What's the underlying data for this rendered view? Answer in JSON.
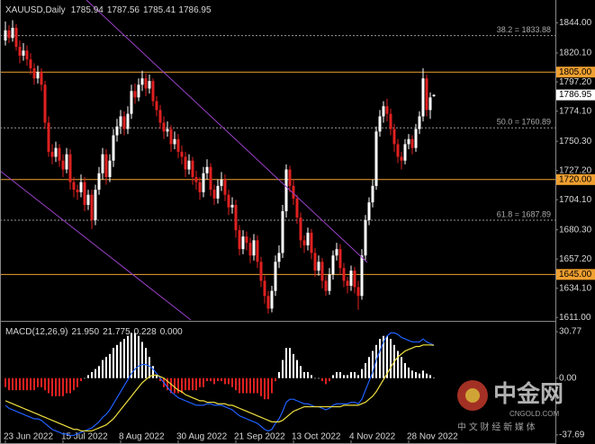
{
  "chart_data": [
    {
      "type": "candlestick",
      "title": "XAUUSD,Daily",
      "ylim": [
        1609,
        1862
      ],
      "yticks": [
        {
          "value": 1844,
          "label": "1844.00"
        },
        {
          "value": 1820.1,
          "label": "1820.10"
        },
        {
          "value": 1797.2,
          "label": "1797.20"
        },
        {
          "value": 1774.1,
          "label": "1774.10"
        },
        {
          "value": 1750.3,
          "label": "1750.30"
        },
        {
          "value": 1727.2,
          "label": "1727.20"
        },
        {
          "value": 1704.1,
          "label": "1704.10"
        },
        {
          "value": 1680.3,
          "label": "1680.30"
        },
        {
          "value": 1657.2,
          "label": "1657.20"
        },
        {
          "value": 1634.1,
          "label": "1634.10"
        },
        {
          "value": 1611,
          "label": "1611.00"
        }
      ],
      "xticks": [
        {
          "value": 0,
          "label": "23 Jun 2022"
        },
        {
          "value": 16,
          "label": "15 Jul 2022"
        },
        {
          "value": 32,
          "label": "8 Aug 2022"
        },
        {
          "value": 48,
          "label": "30 Aug 2022"
        },
        {
          "value": 64,
          "label": "21 Sep 2022"
        },
        {
          "value": 80,
          "label": "13 Oct 2022"
        },
        {
          "value": 96,
          "label": "4 Nov 2022"
        },
        {
          "value": 112,
          "label": "28 Nov 2022"
        }
      ],
      "up_color": "#ffffff",
      "down_color": "#e02020",
      "levels": [
        {
          "value": 1805,
          "label": "1805.00"
        },
        {
          "value": 1720,
          "label": "1720.00"
        },
        {
          "value": 1645,
          "label": "1645.00"
        }
      ],
      "level_color": "#f0a030",
      "fib_levels": [
        {
          "value": 1833.88,
          "label": "38.2 = 1833.88"
        },
        {
          "value": 1760.89,
          "label": "50.0 = 1760.89"
        },
        {
          "value": 1687.89,
          "label": "61.8 = 1687.89"
        }
      ],
      "ohlc": [
        [
          1830,
          1845,
          1826,
          1838
        ],
        [
          1838,
          1842,
          1828,
          1832
        ],
        [
          1832,
          1846,
          1829,
          1840
        ],
        [
          1840,
          1843,
          1822,
          1825
        ],
        [
          1825,
          1830,
          1812,
          1818
        ],
        [
          1818,
          1828,
          1814,
          1822
        ],
        [
          1822,
          1826,
          1810,
          1815
        ],
        [
          1815,
          1820,
          1803,
          1808
        ],
        [
          1808,
          1812,
          1795,
          1800
        ],
        [
          1800,
          1810,
          1796,
          1805
        ],
        [
          1805,
          1808,
          1790,
          1795
        ],
        [
          1795,
          1798,
          1760,
          1765
        ],
        [
          1765,
          1770,
          1738,
          1742
        ],
        [
          1742,
          1748,
          1732,
          1738
        ],
        [
          1738,
          1750,
          1734,
          1745
        ],
        [
          1745,
          1748,
          1730,
          1735
        ],
        [
          1735,
          1740,
          1722,
          1728
        ],
        [
          1728,
          1745,
          1725,
          1740
        ],
        [
          1740,
          1744,
          1712,
          1718
        ],
        [
          1718,
          1722,
          1706,
          1712
        ],
        [
          1712,
          1716,
          1704,
          1710
        ],
        [
          1710,
          1724,
          1706,
          1718
        ],
        [
          1718,
          1722,
          1695,
          1700
        ],
        [
          1700,
          1712,
          1696,
          1708
        ],
        [
          1708,
          1712,
          1681,
          1688
        ],
        [
          1688,
          1716,
          1684,
          1712
        ],
        [
          1712,
          1730,
          1708,
          1725
        ],
        [
          1725,
          1745,
          1720,
          1740
        ],
        [
          1740,
          1744,
          1716,
          1722
        ],
        [
          1722,
          1740,
          1718,
          1735
        ],
        [
          1735,
          1760,
          1730,
          1755
        ],
        [
          1755,
          1768,
          1750,
          1762
        ],
        [
          1762,
          1775,
          1756,
          1770
        ],
        [
          1770,
          1774,
          1755,
          1760
        ],
        [
          1760,
          1778,
          1756,
          1772
        ],
        [
          1772,
          1795,
          1768,
          1790
        ],
        [
          1790,
          1796,
          1780,
          1785
        ],
        [
          1785,
          1800,
          1782,
          1795
        ],
        [
          1795,
          1806,
          1790,
          1800
        ],
        [
          1800,
          1804,
          1786,
          1792
        ],
        [
          1792,
          1803,
          1788,
          1798
        ],
        [
          1798,
          1800,
          1778,
          1782
        ],
        [
          1782,
          1786,
          1770,
          1775
        ],
        [
          1775,
          1779,
          1760,
          1765
        ],
        [
          1765,
          1770,
          1752,
          1758
        ],
        [
          1758,
          1766,
          1754,
          1760
        ],
        [
          1760,
          1763,
          1742,
          1748
        ],
        [
          1748,
          1758,
          1744,
          1752
        ],
        [
          1752,
          1756,
          1737,
          1742
        ],
        [
          1742,
          1747,
          1732,
          1738
        ],
        [
          1738,
          1742,
          1722,
          1728
        ],
        [
          1728,
          1740,
          1724,
          1735
        ],
        [
          1735,
          1738,
          1716,
          1722
        ],
        [
          1722,
          1727,
          1712,
          1718
        ],
        [
          1718,
          1722,
          1704,
          1710
        ],
        [
          1710,
          1730,
          1706,
          1725
        ],
        [
          1725,
          1736,
          1720,
          1730
        ],
        [
          1730,
          1733,
          1707,
          1712
        ],
        [
          1712,
          1716,
          1700,
          1705
        ],
        [
          1705,
          1720,
          1701,
          1715
        ],
        [
          1715,
          1726,
          1711,
          1720
        ],
        [
          1720,
          1724,
          1703,
          1708
        ],
        [
          1708,
          1712,
          1692,
          1698
        ],
        [
          1698,
          1706,
          1693,
          1700
        ],
        [
          1700,
          1704,
          1674,
          1680
        ],
        [
          1680,
          1684,
          1660,
          1665
        ],
        [
          1665,
          1680,
          1661,
          1675
        ],
        [
          1675,
          1679,
          1664,
          1670
        ],
        [
          1670,
          1674,
          1654,
          1660
        ],
        [
          1660,
          1677,
          1656,
          1672
        ],
        [
          1672,
          1676,
          1650,
          1655
        ],
        [
          1655,
          1659,
          1635,
          1640
        ],
        [
          1640,
          1644,
          1622,
          1628
        ],
        [
          1628,
          1632,
          1614,
          1618
        ],
        [
          1618,
          1636,
          1615,
          1632
        ],
        [
          1632,
          1660,
          1628,
          1655
        ],
        [
          1655,
          1668,
          1650,
          1662
        ],
        [
          1662,
          1700,
          1658,
          1695
        ],
        [
          1695,
          1732,
          1690,
          1728
        ],
        [
          1728,
          1731,
          1710,
          1715
        ],
        [
          1715,
          1720,
          1700,
          1705
        ],
        [
          1705,
          1708,
          1685,
          1690
        ],
        [
          1690,
          1694,
          1666,
          1672
        ],
        [
          1672,
          1676,
          1662,
          1668
        ],
        [
          1668,
          1682,
          1664,
          1678
        ],
        [
          1678,
          1681,
          1657,
          1662
        ],
        [
          1662,
          1666,
          1643,
          1648
        ],
        [
          1648,
          1660,
          1644,
          1655
        ],
        [
          1655,
          1658,
          1634,
          1640
        ],
        [
          1640,
          1644,
          1628,
          1632
        ],
        [
          1632,
          1650,
          1629,
          1645
        ],
        [
          1645,
          1664,
          1641,
          1660
        ],
        [
          1660,
          1670,
          1656,
          1665
        ],
        [
          1665,
          1669,
          1645,
          1650
        ],
        [
          1650,
          1654,
          1635,
          1640
        ],
        [
          1640,
          1643,
          1630,
          1636
        ],
        [
          1636,
          1652,
          1632,
          1648
        ],
        [
          1648,
          1651,
          1630,
          1635
        ],
        [
          1635,
          1640,
          1617,
          1628
        ],
        [
          1628,
          1665,
          1625,
          1660
        ],
        [
          1660,
          1692,
          1656,
          1688
        ],
        [
          1688,
          1706,
          1684,
          1702
        ],
        [
          1702,
          1720,
          1698,
          1715
        ],
        [
          1715,
          1762,
          1712,
          1758
        ],
        [
          1758,
          1775,
          1754,
          1770
        ],
        [
          1770,
          1782,
          1765,
          1778
        ],
        [
          1778,
          1784,
          1766,
          1772
        ],
        [
          1772,
          1776,
          1755,
          1760
        ],
        [
          1760,
          1764,
          1742,
          1748
        ],
        [
          1748,
          1752,
          1733,
          1738
        ],
        [
          1738,
          1742,
          1728,
          1735
        ],
        [
          1735,
          1752,
          1732,
          1748
        ],
        [
          1748,
          1756,
          1744,
          1752
        ],
        [
          1752,
          1755,
          1740,
          1745
        ],
        [
          1745,
          1764,
          1742,
          1760
        ],
        [
          1760,
          1774,
          1756,
          1770
        ],
        [
          1770,
          1808,
          1766,
          1800
        ],
        [
          1800,
          1803,
          1770,
          1775
        ],
        [
          1775,
          1789,
          1768,
          1785
        ],
        [
          1785.94,
          1787.56,
          1785.41,
          1786.95
        ]
      ]
    },
    {
      "type": "macd",
      "title": "MACD(12,26,9)",
      "readout": [
        {
          "value": 21.95,
          "label": "21.950"
        },
        {
          "value": 21.775,
          "label": "21.775"
        },
        {
          "value": 0.228,
          "label": "0.228"
        },
        {
          "value": 0,
          "label": "0.000"
        }
      ],
      "ylim": [
        -42.5,
        35
      ],
      "yticks": [
        30.77,
        {
          "value": 0,
          "label": "0.00"
        },
        -37.69
      ],
      "histogram": {
        "pos_color": "#ffffff",
        "neg_color": "#e02020",
        "values": [
          -6,
          -8,
          -8,
          -8,
          -8,
          -8,
          -8,
          -8,
          -8,
          -6,
          -6,
          -8,
          -10,
          -12,
          -12,
          -12,
          -12,
          -10,
          -10,
          -8,
          -6,
          -2,
          0,
          2,
          4,
          6,
          8,
          12,
          14,
          16,
          20,
          22,
          24,
          26,
          28,
          30,
          30,
          28,
          24,
          20,
          14,
          8,
          2,
          -2,
          -6,
          -8,
          -10,
          -10,
          -10,
          -10,
          -8,
          -8,
          -8,
          -8,
          -6,
          -6,
          -2,
          -2,
          -4,
          -2,
          -2,
          -4,
          -4,
          -6,
          -8,
          -10,
          -10,
          -10,
          -10,
          -10,
          -10,
          -12,
          -14,
          -14,
          -10,
          -2,
          4,
          12,
          20,
          20,
          16,
          12,
          8,
          4,
          4,
          2,
          0,
          0,
          -2,
          -4,
          -2,
          2,
          4,
          4,
          2,
          2,
          4,
          4,
          2,
          6,
          10,
          14,
          18,
          22,
          26,
          28,
          28,
          26,
          22,
          18,
          14,
          10,
          7,
          5,
          4,
          3,
          5,
          3,
          2,
          0.228
        ]
      },
      "series": [
        {
          "color": "#2060ff",
          "values": [
            -18,
            -20,
            -21,
            -22,
            -23,
            -24,
            -25,
            -26,
            -27,
            -27,
            -28,
            -30,
            -32,
            -34,
            -35,
            -36,
            -37,
            -37,
            -38,
            -38,
            -37,
            -36,
            -35,
            -34,
            -33,
            -31,
            -29,
            -26,
            -24,
            -21,
            -17,
            -13,
            -9,
            -5,
            -1,
            3,
            6,
            8,
            9,
            9,
            8,
            6,
            3,
            0,
            -3,
            -6,
            -9,
            -11,
            -13,
            -14,
            -15,
            -16,
            -17,
            -18,
            -18,
            -18,
            -17,
            -17,
            -18,
            -18,
            -18,
            -19,
            -20,
            -21,
            -23,
            -25,
            -26,
            -27,
            -28,
            -29,
            -30,
            -32,
            -34,
            -35,
            -34,
            -30,
            -27,
            -22,
            -16,
            -14,
            -14,
            -15,
            -16,
            -17,
            -17,
            -18,
            -19,
            -19,
            -20,
            -21,
            -20,
            -18,
            -17,
            -17,
            -17,
            -17,
            -16,
            -16,
            -17,
            -14,
            -8,
            -2,
            4,
            12,
            18,
            24,
            28,
            30,
            30,
            29,
            27,
            26,
            25,
            24,
            24,
            24,
            26,
            24,
            23,
            21.95
          ]
        },
        {
          "color": "#f0e040",
          "values": [
            -15,
            -16,
            -17,
            -18,
            -19,
            -20,
            -21,
            -22,
            -23,
            -24,
            -25,
            -26,
            -27,
            -28,
            -29,
            -30,
            -31,
            -32,
            -33,
            -34,
            -34,
            -35,
            -35,
            -35,
            -35,
            -34,
            -33,
            -32,
            -31,
            -29,
            -27,
            -24,
            -21,
            -18,
            -15,
            -12,
            -9,
            -6,
            -3,
            -1,
            1,
            2,
            2,
            1,
            0,
            -2,
            -4,
            -6,
            -8,
            -9,
            -11,
            -12,
            -13,
            -14,
            -15,
            -15,
            -16,
            -16,
            -16,
            -17,
            -17,
            -17,
            -18,
            -18,
            -19,
            -20,
            -21,
            -22,
            -23,
            -24,
            -25,
            -26,
            -27,
            -28,
            -29,
            -29,
            -29,
            -28,
            -26,
            -24,
            -22,
            -21,
            -20,
            -19,
            -19,
            -19,
            -19,
            -19,
            -19,
            -19,
            -19,
            -19,
            -19,
            -19,
            -18,
            -18,
            -18,
            -18,
            -18,
            -17,
            -16,
            -14,
            -12,
            -9,
            -5,
            -1,
            3,
            7,
            11,
            14,
            16,
            18,
            19,
            20,
            21,
            21,
            22,
            22,
            22,
            21.775
          ]
        }
      ]
    }
  ],
  "watermark": {
    "logo": "中金网",
    "site": "CNGOLD.COM",
    "tagline": "中 文 财 经 新 媒 体"
  }
}
